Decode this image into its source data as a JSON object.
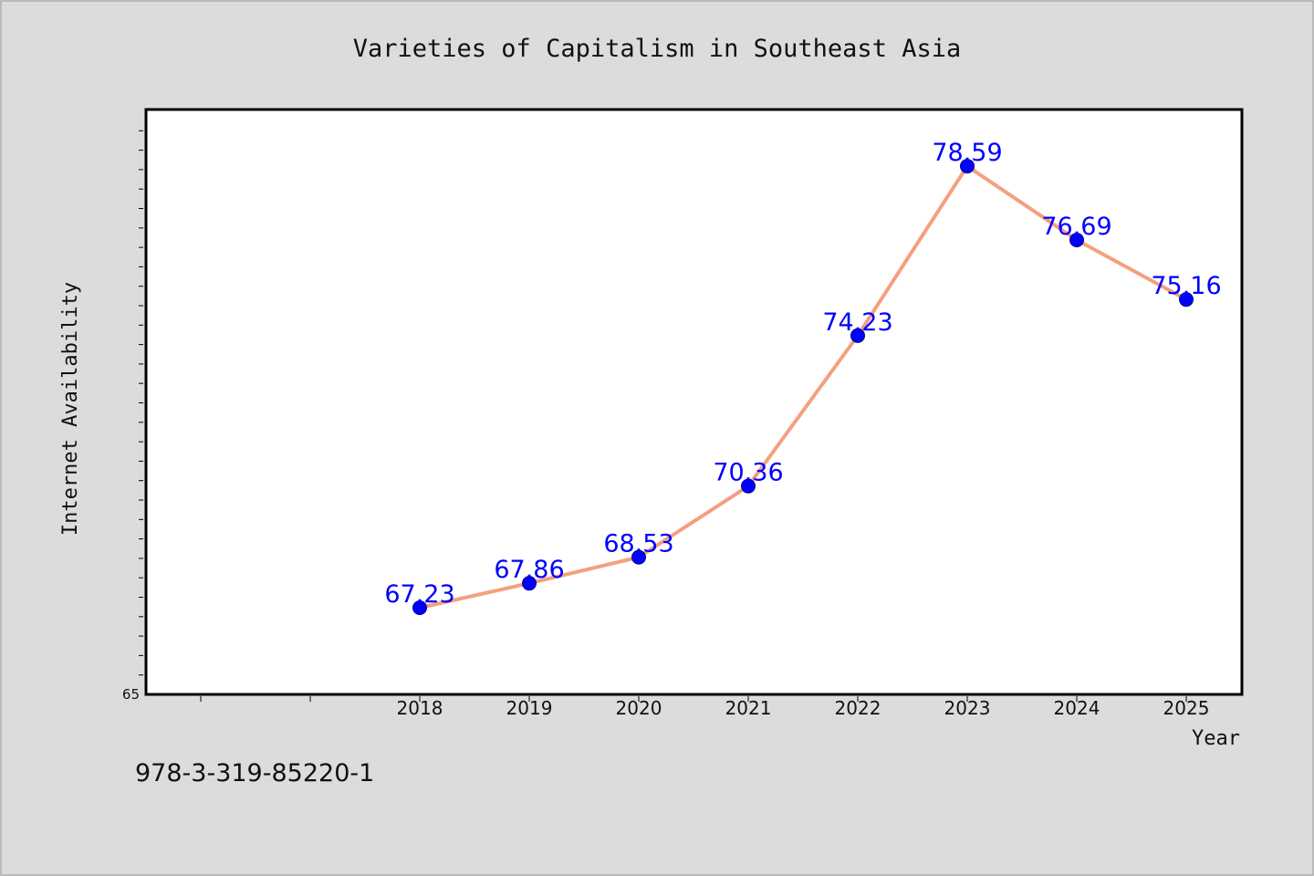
{
  "chart_data": {
    "type": "line",
    "title": "Varieties of Capitalism in Southeast Asia",
    "xlabel": "Year",
    "ylabel": "Internet Availability",
    "categories": [
      "2018",
      "2019",
      "2020",
      "2021",
      "2022",
      "2023",
      "2024",
      "2025"
    ],
    "series": [
      {
        "values": [
          67.23,
          67.86,
          68.53,
          70.36,
          74.23,
          78.59,
          76.69,
          75.16
        ]
      }
    ],
    "data_labels": [
      "67.23",
      "67.86",
      "68.53",
      "70.36",
      "74.23",
      "78.59",
      "76.69",
      "75.16"
    ],
    "y_tick_labels": [
      "65"
    ],
    "ylim": [
      65,
      80
    ],
    "grid": false,
    "colors": {
      "line": "#f4a07f",
      "marker": "#0000ff",
      "label": "#0000ff",
      "background": "#dcdcdc",
      "plot_bg": "#ffffff"
    }
  },
  "footer": {
    "isbn": "978-3-319-85220-1"
  }
}
